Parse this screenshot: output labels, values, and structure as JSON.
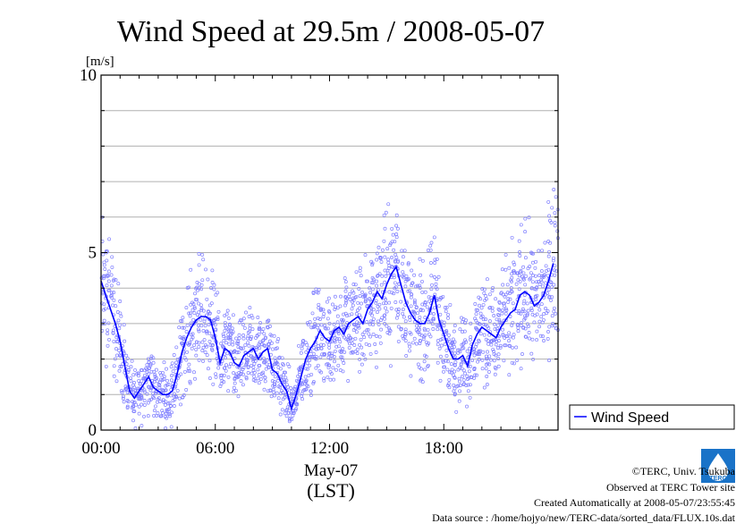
{
  "chart_data": {
    "type": "scatter",
    "title": "Wind Speed at 29.5m / 2008-05-07",
    "unit_label": "[m/s]",
    "ylim": [
      0,
      10
    ],
    "xlim": [
      0,
      24
    ],
    "y_ticks": [
      {
        "value": 0,
        "label": "0"
      },
      {
        "value": 5,
        "label": "5"
      },
      {
        "value": 10,
        "label": "10"
      }
    ],
    "x_ticks": [
      {
        "value": 0,
        "label": "00:00"
      },
      {
        "value": 6,
        "label": "06:00"
      },
      {
        "value": 12,
        "label": "12:00"
      },
      {
        "value": 18,
        "label": "18:00"
      }
    ],
    "date_label": "May-07",
    "xlabel": "(LST)",
    "grid": true,
    "legend_position": "right",
    "series": [
      {
        "name": "Wind Speed",
        "color": "#0000ff",
        "scatter_color": "#8080ff",
        "x": [
          0.0,
          0.25,
          0.5,
          0.75,
          1.0,
          1.25,
          1.5,
          1.75,
          2.0,
          2.25,
          2.5,
          2.75,
          3.0,
          3.25,
          3.5,
          3.75,
          4.0,
          4.25,
          4.5,
          4.75,
          5.0,
          5.25,
          5.5,
          5.75,
          6.0,
          6.25,
          6.5,
          6.75,
          7.0,
          7.25,
          7.5,
          7.75,
          8.0,
          8.25,
          8.5,
          8.75,
          9.0,
          9.25,
          9.5,
          9.75,
          10.0,
          10.25,
          10.5,
          10.75,
          11.0,
          11.25,
          11.5,
          11.75,
          12.0,
          12.25,
          12.5,
          12.75,
          13.0,
          13.25,
          13.5,
          13.75,
          14.0,
          14.25,
          14.5,
          14.75,
          15.0,
          15.25,
          15.5,
          15.75,
          16.0,
          16.25,
          16.5,
          16.75,
          17.0,
          17.25,
          17.5,
          17.75,
          18.0,
          18.25,
          18.5,
          18.75,
          19.0,
          19.25,
          19.5,
          19.75,
          20.0,
          20.25,
          20.5,
          20.75,
          21.0,
          21.25,
          21.5,
          21.75,
          22.0,
          22.25,
          22.5,
          22.75,
          23.0,
          23.25,
          23.5,
          23.75
        ],
        "values": [
          4.2,
          3.8,
          3.4,
          3.0,
          2.5,
          1.8,
          1.1,
          0.9,
          1.1,
          1.3,
          1.5,
          1.2,
          1.1,
          1.0,
          1.0,
          1.1,
          1.6,
          2.2,
          2.6,
          2.9,
          3.1,
          3.2,
          3.2,
          3.1,
          2.6,
          1.9,
          2.3,
          2.2,
          1.9,
          1.8,
          2.1,
          2.2,
          2.3,
          2.0,
          2.2,
          2.3,
          1.7,
          1.6,
          1.3,
          1.1,
          0.6,
          1.0,
          1.5,
          2.0,
          2.3,
          2.5,
          2.8,
          2.6,
          2.5,
          2.8,
          2.9,
          2.7,
          3.0,
          3.1,
          3.2,
          3.0,
          3.4,
          3.6,
          3.9,
          3.7,
          4.1,
          4.4,
          4.6,
          4.1,
          3.6,
          3.3,
          3.1,
          3.0,
          3.0,
          3.3,
          3.8,
          3.1,
          2.7,
          2.3,
          2.0,
          2.0,
          2.1,
          1.8,
          2.4,
          2.7,
          2.9,
          2.8,
          2.7,
          2.6,
          2.9,
          3.1,
          3.3,
          3.4,
          3.8,
          3.9,
          3.8,
          3.5,
          3.6,
          3.8,
          4.2,
          4.7
        ]
      }
    ]
  },
  "credits": {
    "copyright": "©TERC, Univ. Tsukuba",
    "observed": "Observed at TERC Tower site",
    "created": "Created Automatically at 2008-05-07/23:55:45",
    "source": "Data source : /home/hojyo/new/TERC-data/sorted_data/FLUX.10s.dat"
  },
  "logo": {
    "text": "TERC",
    "color": "#1a73c8"
  }
}
